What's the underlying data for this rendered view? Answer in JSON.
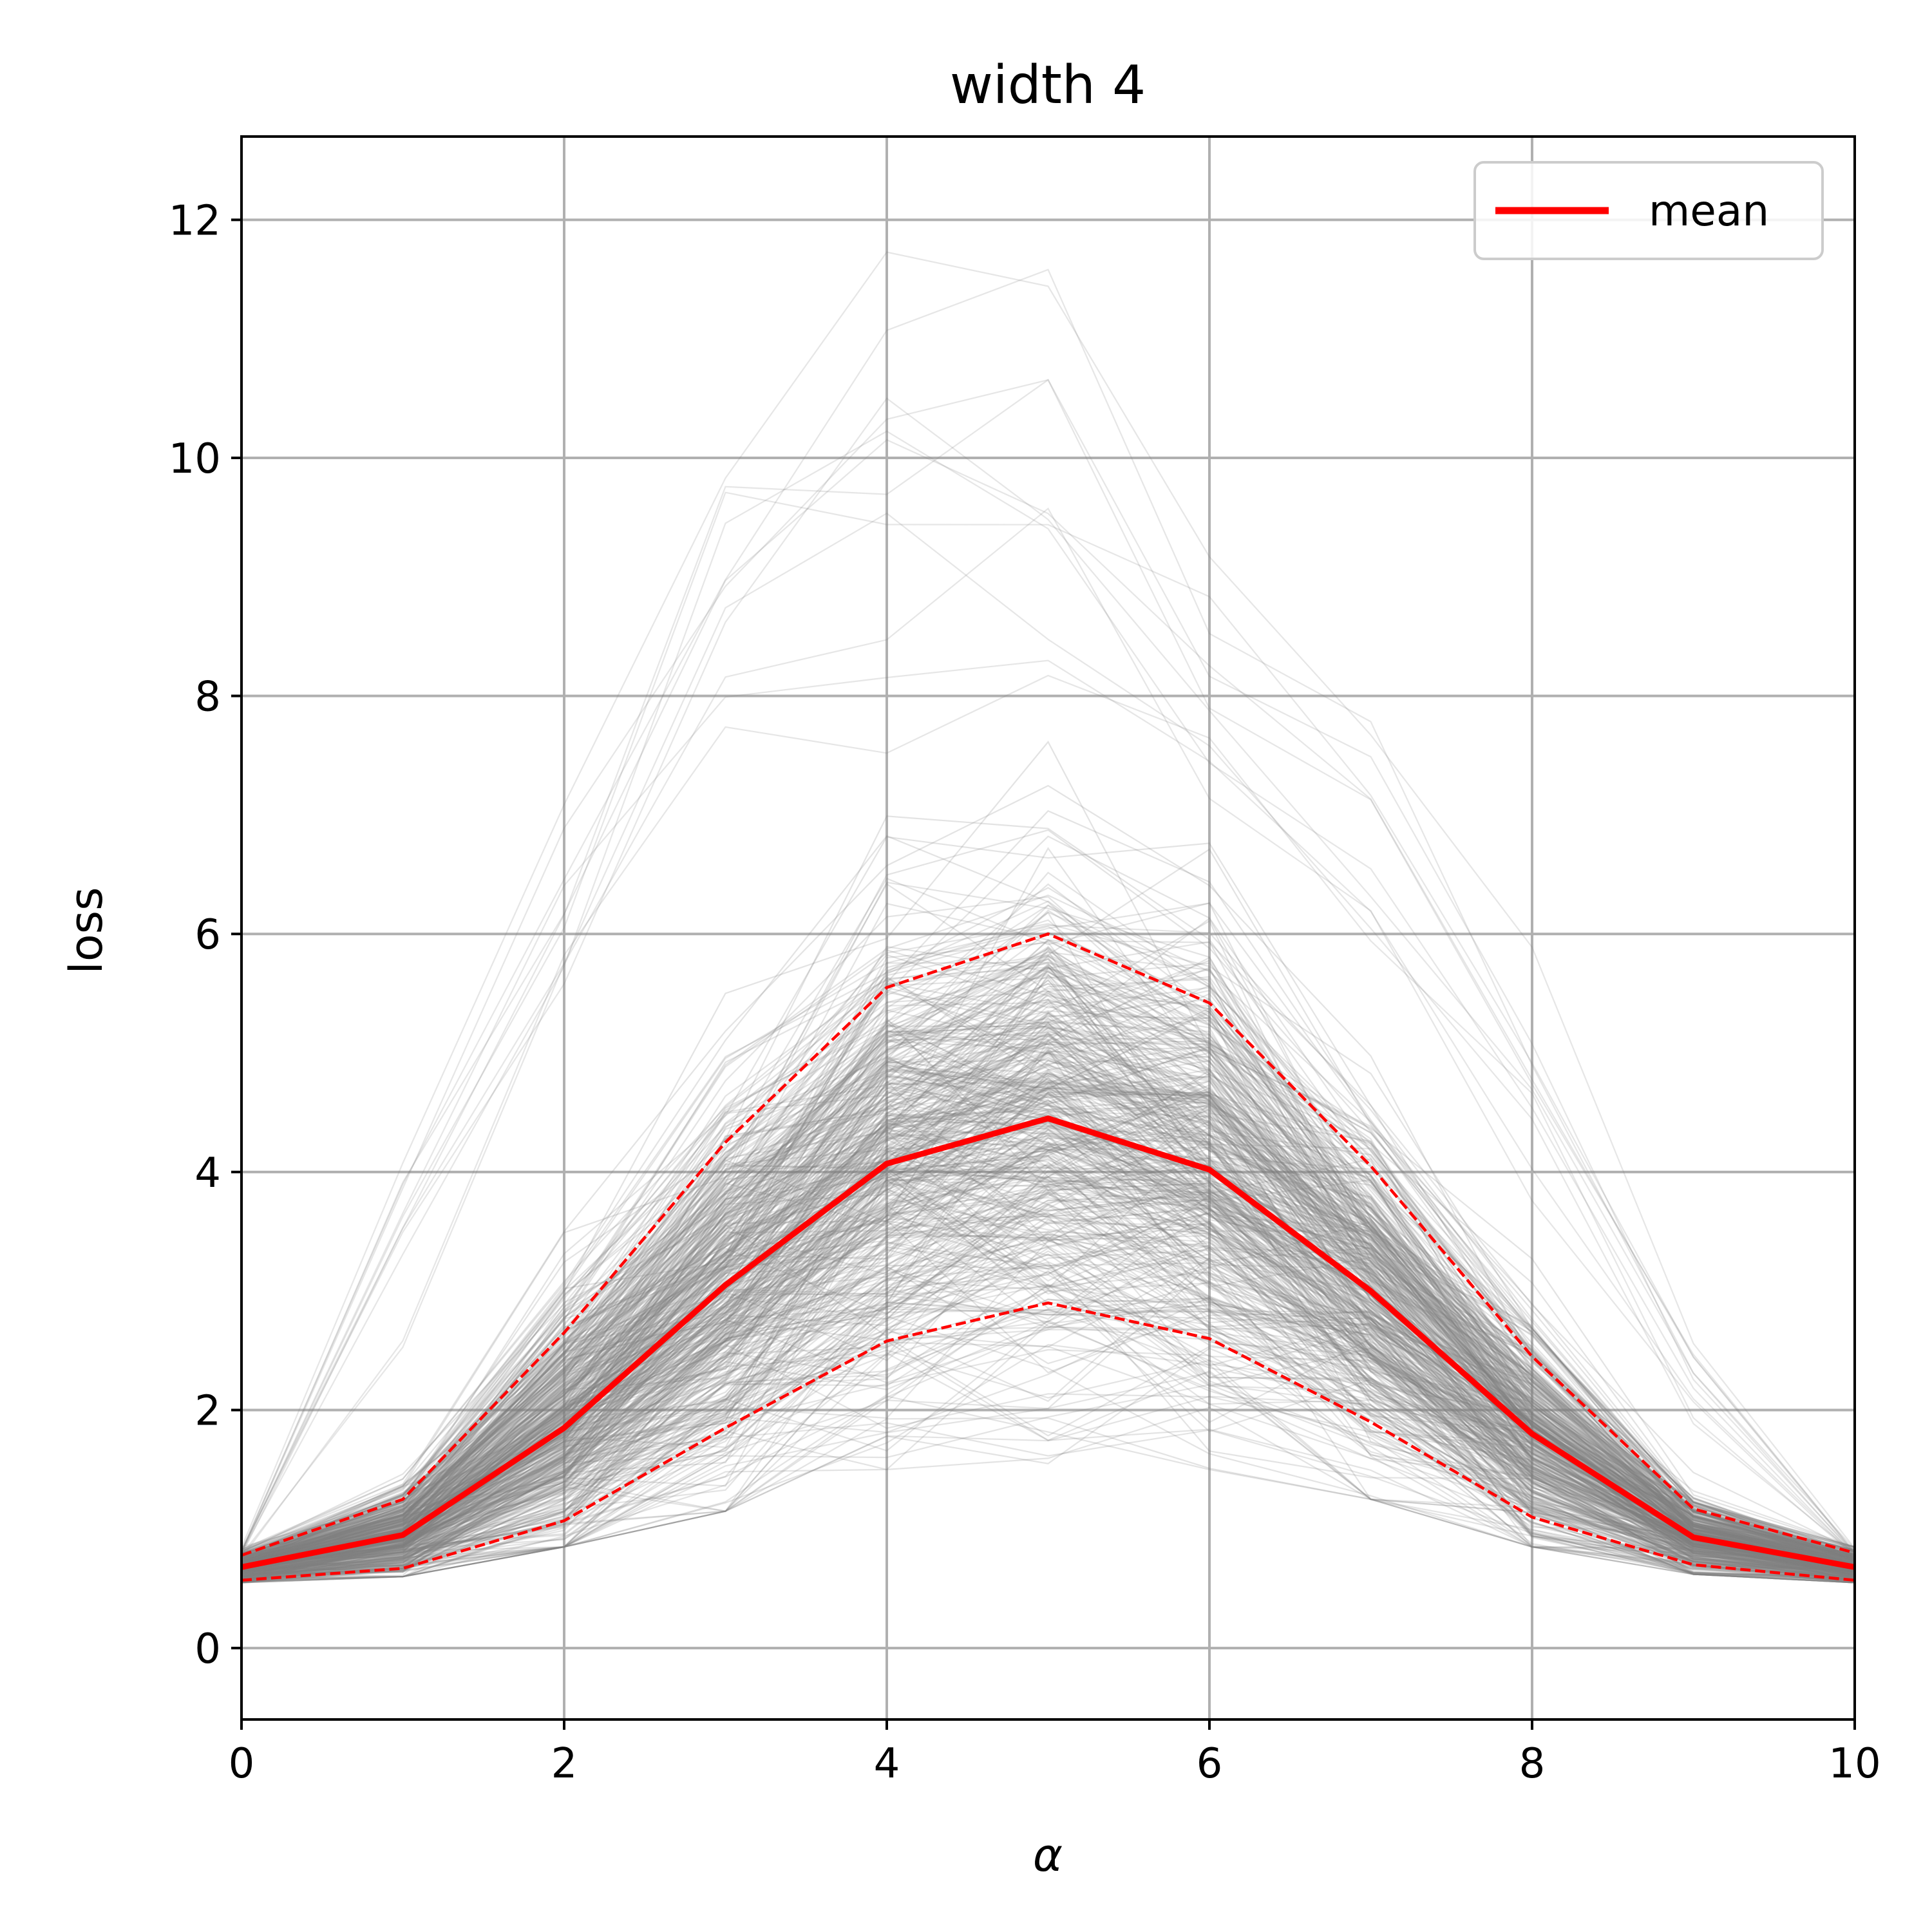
{
  "chart_data": {
    "type": "line",
    "title": "width 4",
    "xlabel": "α",
    "ylabel": "loss",
    "xlim": [
      0,
      10
    ],
    "ylim": [
      -0.6,
      12.7
    ],
    "xticks": [
      0,
      2,
      4,
      6,
      8,
      10
    ],
    "yticks": [
      0,
      2,
      4,
      6,
      8,
      10,
      12
    ],
    "grid": true,
    "legend": {
      "placement": "top-right",
      "entries": [
        "mean"
      ]
    },
    "x": [
      0,
      1,
      2,
      3,
      4,
      5,
      6,
      7,
      8,
      9,
      10
    ],
    "series": [
      {
        "name": "mean",
        "style": "solid",
        "color": "#ff0000",
        "values": [
          0.68,
          0.95,
          1.85,
          3.05,
          4.07,
          4.45,
          4.02,
          3.0,
          1.8,
          0.93,
          0.68
        ]
      },
      {
        "style": "dashed",
        "color": "#ff0000",
        "values": [
          0.78,
          1.25,
          2.65,
          4.25,
          5.55,
          6.0,
          5.42,
          4.05,
          2.45,
          1.17,
          0.8
        ]
      },
      {
        "style": "dashed",
        "color": "#ff0000",
        "values": [
          0.57,
          0.67,
          1.07,
          1.85,
          2.58,
          2.9,
          2.6,
          1.9,
          1.1,
          0.7,
          0.57
        ]
      }
    ],
    "background_runs": {
      "color": "#808080",
      "count": 500,
      "envelope_min": [
        0.55,
        0.6,
        0.85,
        1.15,
        1.5,
        1.55,
        1.5,
        1.25,
        0.85,
        0.62,
        0.55
      ],
      "envelope_max": [
        0.85,
        4.6,
        8.0,
        11.0,
        11.8,
        12.1,
        9.6,
        8.15,
        6.0,
        2.8,
        0.85
      ]
    }
  }
}
